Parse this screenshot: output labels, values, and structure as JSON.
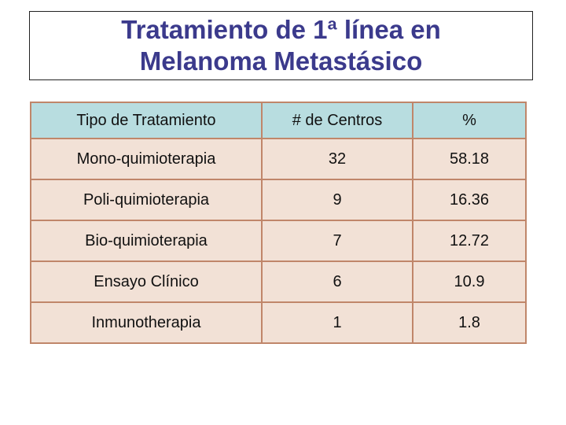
{
  "title": {
    "line1": "Tratamiento de 1ª línea en",
    "line2": "Melanoma Metastásico"
  },
  "table": {
    "headers": [
      "Tipo de Tratamiento",
      "# de Centros",
      "%"
    ],
    "rows": [
      [
        "Mono-quimioterapia",
        "32",
        "58.18"
      ],
      [
        "Poli-quimioterapia",
        "9",
        "16.36"
      ],
      [
        "Bio-quimioterapia",
        "7",
        "12.72"
      ],
      [
        "Ensayo Clínico",
        "6",
        "10.9"
      ],
      [
        "Inmunotherapia",
        "1",
        "1.8"
      ]
    ]
  },
  "colors": {
    "title": "#3b3a8c",
    "header_bg": "#b8dde0",
    "row_bg": "#f2e1d6",
    "border": "#c0866a"
  }
}
